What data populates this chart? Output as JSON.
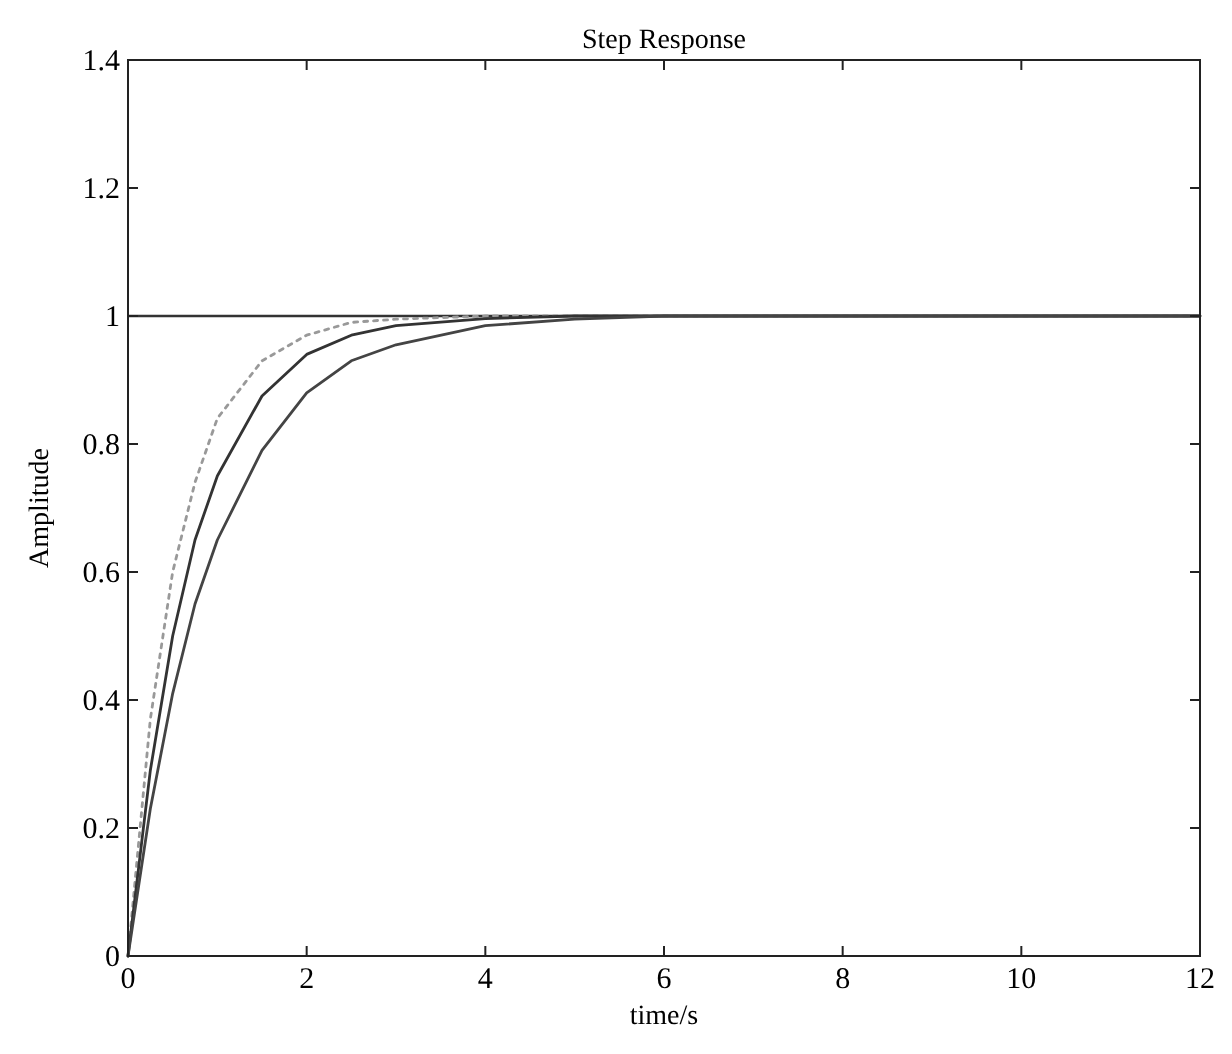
{
  "chart_data": {
    "type": "line",
    "title": "Step Response",
    "xlabel": "time/s",
    "ylabel": "Amplitude",
    "x": [
      0,
      0.25,
      0.5,
      0.75,
      1,
      1.5,
      2,
      2.5,
      3,
      4,
      5,
      6,
      8,
      12
    ],
    "series": [
      {
        "color": "#999999",
        "line_style": "dotted",
        "values": [
          0,
          0.37,
          0.6,
          0.74,
          0.84,
          0.93,
          0.97,
          0.99,
          0.995,
          1,
          1,
          1,
          1,
          1
        ]
      },
      {
        "color": "#333333",
        "line_style": "solid",
        "values": [
          0,
          0.29,
          0.5,
          0.65,
          0.75,
          0.875,
          0.94,
          0.97,
          0.985,
          0.996,
          1,
          1,
          1,
          1
        ]
      },
      {
        "color": "#444444",
        "line_style": "solid",
        "values": [
          0,
          0.23,
          0.41,
          0.55,
          0.65,
          0.79,
          0.88,
          0.93,
          0.955,
          0.985,
          0.995,
          1,
          1,
          1
        ]
      }
    ],
    "xlim": [
      0,
      12
    ],
    "xticks": [
      0,
      2,
      4,
      6,
      8,
      10,
      12
    ],
    "ylim": [
      0,
      1.4
    ],
    "yticks": [
      0,
      0.2,
      0.4,
      0.6,
      0.8,
      1,
      1.2,
      1.4
    ],
    "ref_lines": [
      {
        "axis": "y",
        "value": 1,
        "color": "#333333"
      }
    ],
    "marker": "none"
  }
}
